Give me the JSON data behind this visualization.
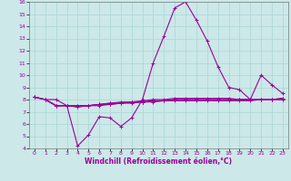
{
  "xlabel": "Windchill (Refroidissement éolien,°C)",
  "background_color": "#cce8e8",
  "grid_color": "#aad4d4",
  "line_color": "#990099",
  "xlim": [
    -0.5,
    23.5
  ],
  "ylim": [
    4,
    16
  ],
  "yticks": [
    4,
    5,
    6,
    7,
    8,
    9,
    10,
    11,
    12,
    13,
    14,
    15,
    16
  ],
  "xticks": [
    0,
    1,
    2,
    3,
    4,
    5,
    6,
    7,
    8,
    9,
    10,
    11,
    12,
    13,
    14,
    15,
    16,
    17,
    18,
    19,
    20,
    21,
    22,
    23
  ],
  "series": [
    [
      8.2,
      8.0,
      8.0,
      7.5,
      4.2,
      5.1,
      6.6,
      6.5,
      5.8,
      6.5,
      8.0,
      11.0,
      13.2,
      15.5,
      16.0,
      14.5,
      12.8,
      10.7,
      9.0,
      8.8,
      8.0,
      10.0,
      9.2,
      8.5
    ],
    [
      8.2,
      8.0,
      7.5,
      7.5,
      7.4,
      7.5,
      7.6,
      7.7,
      7.8,
      7.8,
      7.9,
      8.0,
      8.0,
      8.1,
      8.1,
      8.1,
      8.1,
      8.1,
      8.1,
      8.0,
      8.0,
      8.0,
      8.0,
      8.1
    ],
    [
      8.2,
      8.0,
      7.5,
      7.5,
      7.5,
      7.5,
      7.6,
      7.7,
      7.7,
      7.8,
      7.8,
      7.9,
      7.9,
      8.0,
      8.0,
      8.0,
      8.0,
      8.0,
      8.0,
      8.0,
      8.0,
      8.0,
      8.0,
      8.1
    ],
    [
      8.2,
      8.0,
      7.5,
      7.5,
      7.5,
      7.5,
      7.6,
      7.6,
      7.7,
      7.8,
      7.8,
      7.9,
      7.9,
      8.0,
      8.0,
      8.0,
      8.0,
      8.0,
      8.0,
      8.0,
      8.0,
      8.0,
      8.0,
      8.0
    ],
    [
      8.2,
      8.0,
      7.5,
      7.5,
      7.4,
      7.5,
      7.5,
      7.6,
      7.7,
      7.7,
      7.8,
      7.8,
      7.9,
      7.9,
      7.9,
      7.9,
      7.9,
      7.9,
      7.9,
      7.9,
      7.9,
      8.0,
      8.0,
      8.0
    ]
  ],
  "marker": "+",
  "markersize": 3,
  "linewidth": 0.8,
  "axis_fontsize": 5.5,
  "tick_fontsize": 4.5
}
